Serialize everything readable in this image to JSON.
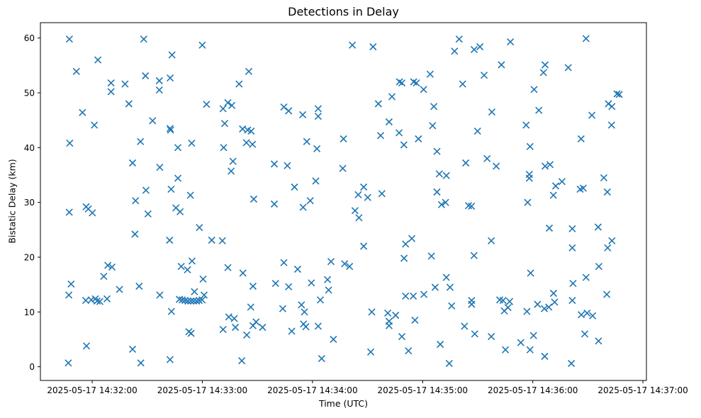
{
  "chart_data": {
    "type": "scatter",
    "title": "Detections in Delay",
    "xlabel": "Time (UTC)",
    "ylabel": "Bistatic Delay (km)",
    "marker": "x",
    "marker_color": "#1f77b4",
    "grid": false,
    "legend": null,
    "x_unit": "seconds after 2025-05-17 14:32:00 UTC",
    "xlim_seconds": [
      -28.2,
      301.9
    ],
    "ylim": [
      -2.5,
      62.8
    ],
    "x_ticks": [
      {
        "value": 0,
        "label": "2025-05-17 14:32:00"
      },
      {
        "value": 60,
        "label": "2025-05-17 14:33:00"
      },
      {
        "value": 120,
        "label": "2025-05-17 14:34:00"
      },
      {
        "value": 180,
        "label": "2025-05-17 14:35:00"
      },
      {
        "value": 240,
        "label": "2025-05-17 14:36:00"
      },
      {
        "value": 300,
        "label": "2025-05-17 14:37:00"
      }
    ],
    "y_ticks": [
      0,
      10,
      20,
      30,
      40,
      50,
      60
    ],
    "points": [
      [
        -12.4,
        59.8
      ],
      [
        28.1,
        59.8
      ],
      [
        43.5,
        56.9
      ],
      [
        3.1,
        56.0
      ],
      [
        -8.6,
        53.9
      ],
      [
        29.0,
        53.1
      ],
      [
        36.6,
        52.2
      ],
      [
        42.5,
        52.7
      ],
      [
        10.3,
        51.8
      ],
      [
        17.9,
        51.6
      ],
      [
        10.3,
        50.2
      ],
      [
        36.6,
        50.5
      ],
      [
        20.0,
        48.0
      ],
      [
        -5.3,
        46.4
      ],
      [
        1.2,
        44.1
      ],
      [
        32.9,
        44.9
      ],
      [
        42.4,
        43.5
      ],
      [
        42.7,
        43.2
      ],
      [
        60.0,
        58.7
      ],
      [
        85.3,
        53.9
      ],
      [
        80.0,
        51.6
      ],
      [
        62.3,
        47.9
      ],
      [
        73.9,
        48.2
      ],
      [
        76.1,
        47.7
      ],
      [
        71.3,
        47.1
      ],
      [
        72.2,
        44.4
      ],
      [
        104.4,
        47.4
      ],
      [
        107.0,
        46.7
      ],
      [
        114.7,
        46.0
      ],
      [
        123.1,
        47.1
      ],
      [
        123.1,
        45.7
      ],
      [
        81.9,
        43.4
      ],
      [
        84.7,
        43.2
      ],
      [
        86.6,
        43.0
      ],
      [
        84.0,
        40.9
      ],
      [
        87.3,
        40.6
      ],
      [
        116.9,
        41.1
      ],
      [
        136.9,
        41.6
      ],
      [
        141.7,
        58.7
      ],
      [
        153.0,
        58.4
      ],
      [
        199.9,
        59.8
      ],
      [
        197.4,
        57.6
      ],
      [
        208.1,
        57.9
      ],
      [
        211.2,
        58.4
      ],
      [
        184.1,
        53.4
      ],
      [
        167.4,
        52.0
      ],
      [
        168.7,
        51.8
      ],
      [
        175.1,
        52.0
      ],
      [
        176.6,
        51.8
      ],
      [
        180.5,
        50.6
      ],
      [
        213.5,
        53.2
      ],
      [
        201.8,
        51.6
      ],
      [
        163.3,
        49.3
      ],
      [
        155.9,
        48.0
      ],
      [
        186.1,
        47.5
      ],
      [
        217.7,
        46.5
      ],
      [
        161.7,
        44.7
      ],
      [
        167.2,
        42.7
      ],
      [
        157.1,
        42.2
      ],
      [
        185.4,
        44.0
      ],
      [
        209.9,
        43.0
      ],
      [
        177.7,
        41.6
      ],
      [
        227.8,
        59.3
      ],
      [
        269.0,
        59.9
      ],
      [
        222.9,
        55.1
      ],
      [
        246.7,
        55.1
      ],
      [
        245.8,
        53.7
      ],
      [
        259.3,
        54.6
      ],
      [
        240.7,
        50.6
      ],
      [
        285.9,
        49.8
      ],
      [
        287.1,
        49.7
      ],
      [
        281.2,
        48.0
      ],
      [
        283.1,
        47.5
      ],
      [
        243.3,
        46.8
      ],
      [
        272.2,
        45.9
      ],
      [
        236.4,
        44.1
      ],
      [
        282.9,
        44.1
      ],
      [
        266.3,
        41.6
      ],
      [
        -12.2,
        40.8
      ],
      [
        26.3,
        41.1
      ],
      [
        46.7,
        40.0
      ],
      [
        54.2,
        40.8
      ],
      [
        22.0,
        37.2
      ],
      [
        36.8,
        36.4
      ],
      [
        46.7,
        34.4
      ],
      [
        29.3,
        32.2
      ],
      [
        43.0,
        32.4
      ],
      [
        53.5,
        31.3
      ],
      [
        23.6,
        30.3
      ],
      [
        -12.5,
        28.2
      ],
      [
        -3.3,
        29.2
      ],
      [
        -2.1,
        28.8
      ],
      [
        0.1,
        28.1
      ],
      [
        30.4,
        27.9
      ],
      [
        45.6,
        29.0
      ],
      [
        47.9,
        28.3
      ],
      [
        23.3,
        24.2
      ],
      [
        42.2,
        23.1
      ],
      [
        71.6,
        40.0
      ],
      [
        122.4,
        39.8
      ],
      [
        76.7,
        37.5
      ],
      [
        75.7,
        35.7
      ],
      [
        99.2,
        37.0
      ],
      [
        106.3,
        36.7
      ],
      [
        136.5,
        36.2
      ],
      [
        121.8,
        33.9
      ],
      [
        110.2,
        32.8
      ],
      [
        88.0,
        30.6
      ],
      [
        99.2,
        29.7
      ],
      [
        118.8,
        30.3
      ],
      [
        114.9,
        29.1
      ],
      [
        58.4,
        25.4
      ],
      [
        65.1,
        23.1
      ],
      [
        70.9,
        23.0
      ],
      [
        169.8,
        40.5
      ],
      [
        187.8,
        39.3
      ],
      [
        203.5,
        37.2
      ],
      [
        215.1,
        38.0
      ],
      [
        220.1,
        36.6
      ],
      [
        189.1,
        35.2
      ],
      [
        192.9,
        34.9
      ],
      [
        147.9,
        32.8
      ],
      [
        144.9,
        31.4
      ],
      [
        150.1,
        30.9
      ],
      [
        157.8,
        31.6
      ],
      [
        187.8,
        31.9
      ],
      [
        190.3,
        29.6
      ],
      [
        192.5,
        30.0
      ],
      [
        205.0,
        29.4
      ],
      [
        206.6,
        29.3
      ],
      [
        143.2,
        28.5
      ],
      [
        145.3,
        27.2
      ],
      [
        170.7,
        22.4
      ],
      [
        174.1,
        23.4
      ],
      [
        147.9,
        22.0
      ],
      [
        217.4,
        23.0
      ],
      [
        208.0,
        20.3
      ],
      [
        184.8,
        20.2
      ],
      [
        169.9,
        19.8
      ],
      [
        238.5,
        40.2
      ],
      [
        246.7,
        36.6
      ],
      [
        249.4,
        36.9
      ],
      [
        238.1,
        35.1
      ],
      [
        238.1,
        34.4
      ],
      [
        255.9,
        33.8
      ],
      [
        252.5,
        33.0
      ],
      [
        265.8,
        32.4
      ],
      [
        267.5,
        32.6
      ],
      [
        278.7,
        34.5
      ],
      [
        280.6,
        31.9
      ],
      [
        251.2,
        31.3
      ],
      [
        237.2,
        30.0
      ],
      [
        249.0,
        25.3
      ],
      [
        261.5,
        25.2
      ],
      [
        275.6,
        25.5
      ],
      [
        283.1,
        23.0
      ],
      [
        261.5,
        21.7
      ],
      [
        280.8,
        21.7
      ],
      [
        8.5,
        18.5
      ],
      [
        10.8,
        18.2
      ],
      [
        6.3,
        16.5
      ],
      [
        -11.5,
        15.1
      ],
      [
        -12.7,
        13.1
      ],
      [
        14.9,
        14.1
      ],
      [
        25.6,
        14.7
      ],
      [
        -3.5,
        12.1
      ],
      [
        -0.5,
        12.2
      ],
      [
        1.7,
        12.4
      ],
      [
        2.7,
        12.0
      ],
      [
        4.2,
        11.9
      ],
      [
        8.1,
        12.4
      ],
      [
        36.8,
        13.1
      ],
      [
        43.2,
        10.1
      ],
      [
        -3.1,
        3.8
      ],
      [
        22.0,
        3.2
      ],
      [
        -13.0,
        0.7
      ],
      [
        26.5,
        0.7
      ],
      [
        42.4,
        1.3
      ],
      [
        52.7,
        6.4
      ],
      [
        53.9,
        6.1
      ],
      [
        47.5,
        12.3
      ],
      [
        49.0,
        12.2
      ],
      [
        50.6,
        12.1
      ],
      [
        52.1,
        12.0
      ],
      [
        53.7,
        12.0
      ],
      [
        55.2,
        12.0
      ],
      [
        56.8,
        12.0
      ],
      [
        58.3,
        12.1
      ],
      [
        59.9,
        12.2
      ],
      [
        61.0,
        13.1
      ],
      [
        55.7,
        13.7
      ],
      [
        54.4,
        19.3
      ],
      [
        48.5,
        18.3
      ],
      [
        51.9,
        17.7
      ],
      [
        73.9,
        18.1
      ],
      [
        82.1,
        17.1
      ],
      [
        104.4,
        19.0
      ],
      [
        111.9,
        17.8
      ],
      [
        130.1,
        19.2
      ],
      [
        137.5,
        18.8
      ],
      [
        60.4,
        16.0
      ],
      [
        87.6,
        14.7
      ],
      [
        99.9,
        15.2
      ],
      [
        107.0,
        14.6
      ],
      [
        119.4,
        15.3
      ],
      [
        128.2,
        15.9
      ],
      [
        128.8,
        14.0
      ],
      [
        124.3,
        12.2
      ],
      [
        86.4,
        10.9
      ],
      [
        103.8,
        10.6
      ],
      [
        114.0,
        11.3
      ],
      [
        115.6,
        10.0
      ],
      [
        74.4,
        9.1
      ],
      [
        77.4,
        8.8
      ],
      [
        71.3,
        6.8
      ],
      [
        78.0,
        7.2
      ],
      [
        89.3,
        8.2
      ],
      [
        87.6,
        7.5
      ],
      [
        92.8,
        7.2
      ],
      [
        84.2,
        5.8
      ],
      [
        108.7,
        6.5
      ],
      [
        115.1,
        7.8
      ],
      [
        116.4,
        7.3
      ],
      [
        123.1,
        7.4
      ],
      [
        131.4,
        5.0
      ],
      [
        81.5,
        1.1
      ],
      [
        125.0,
        1.5
      ],
      [
        140.2,
        18.3
      ],
      [
        192.9,
        16.3
      ],
      [
        186.8,
        14.5
      ],
      [
        194.9,
        14.5
      ],
      [
        170.7,
        12.9
      ],
      [
        174.9,
        12.9
      ],
      [
        180.7,
        13.2
      ],
      [
        152.3,
        10.0
      ],
      [
        161.0,
        9.8
      ],
      [
        165.3,
        9.4
      ],
      [
        161.7,
        8.3
      ],
      [
        161.7,
        7.5
      ],
      [
        175.8,
        8.5
      ],
      [
        168.7,
        5.5
      ],
      [
        195.8,
        11.1
      ],
      [
        206.7,
        12.1
      ],
      [
        206.7,
        11.4
      ],
      [
        202.8,
        7.4
      ],
      [
        208.4,
        6.0
      ],
      [
        217.4,
        5.5
      ],
      [
        189.6,
        4.1
      ],
      [
        151.7,
        2.7
      ],
      [
        172.3,
        2.9
      ],
      [
        194.5,
        0.6
      ],
      [
        238.8,
        17.1
      ],
      [
        276.0,
        18.3
      ],
      [
        269.0,
        16.3
      ],
      [
        261.9,
        15.2
      ],
      [
        251.3,
        13.4
      ],
      [
        280.3,
        13.2
      ],
      [
        222.0,
        12.2
      ],
      [
        223.8,
        12.1
      ],
      [
        227.4,
        11.9
      ],
      [
        226.5,
        10.8
      ],
      [
        224.5,
        10.2
      ],
      [
        236.8,
        10.1
      ],
      [
        242.6,
        11.4
      ],
      [
        246.3,
        10.6
      ],
      [
        248.7,
        10.9
      ],
      [
        251.9,
        11.8
      ],
      [
        261.5,
        12.1
      ],
      [
        266.4,
        9.5
      ],
      [
        269.6,
        9.8
      ],
      [
        272.6,
        9.3
      ],
      [
        268.3,
        6.0
      ],
      [
        275.8,
        4.7
      ],
      [
        240.4,
        5.7
      ],
      [
        233.5,
        4.4
      ],
      [
        225.1,
        3.1
      ],
      [
        238.5,
        3.1
      ],
      [
        246.5,
        1.9
      ],
      [
        261.0,
        0.6
      ]
    ]
  }
}
